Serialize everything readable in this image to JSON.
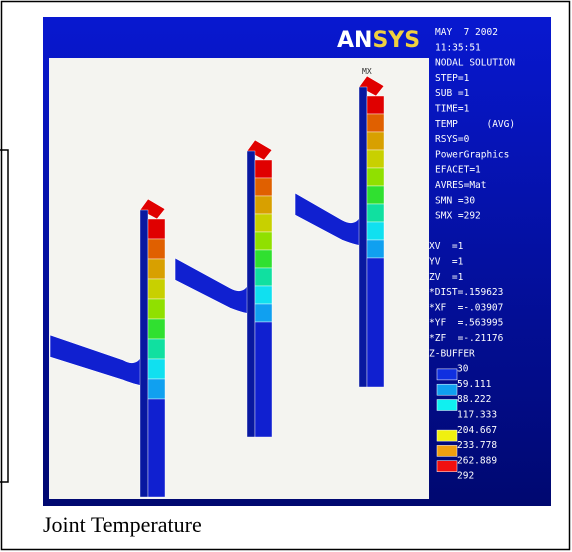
{
  "logo": "ANSYS",
  "max_label": "MX",
  "info": [
    "MAY  7 2002",
    "11:35:51",
    "NODAL SOLUTION",
    "STEP=1",
    "SUB =1",
    "TIME=1",
    "TEMP     (AVG)",
    "RSYS=0",
    "PowerGraphics",
    "EFACET=1",
    "AVRES=Mat",
    "SMN =30",
    "SMX =292"
  ],
  "view": [
    "XV  =1",
    "YV  =1",
    "ZV  =1",
    "*DIST=.159623",
    "*XF  =-.03907",
    "*YF  =.563995",
    "*ZF  =-.21176",
    "Z-BUFFER"
  ],
  "legend": {
    "values": [
      "30",
      "59.111",
      "88.222",
      "117.333",
      "204.667",
      "233.778",
      "262.889",
      "292"
    ]
  },
  "caption": "Joint Temperature"
}
